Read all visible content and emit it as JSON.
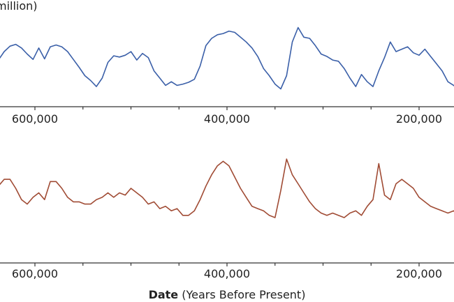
{
  "chart_data": [
    {
      "type": "line",
      "label_fragment": "million)",
      "xlim": [
        650000,
        160000
      ],
      "x_ticks": [
        600000,
        400000,
        200000
      ],
      "x_tick_labels": [
        "600,000",
        "400,000",
        "200,000"
      ],
      "color": "#3a5fa8",
      "series": [
        {
          "x": [
            650000,
            644000,
            638000,
            632000,
            626000,
            620000,
            614000,
            608000,
            602000,
            596000,
            590000,
            584000,
            578000,
            572000,
            566000,
            560000,
            554000,
            548000,
            542000,
            536000,
            530000,
            524000,
            518000,
            512000,
            506000,
            500000,
            494000,
            488000,
            482000,
            476000,
            470000,
            464000,
            458000,
            452000,
            446000,
            440000,
            434000,
            428000,
            422000,
            416000,
            410000,
            404000,
            398000,
            392000,
            386000,
            380000,
            374000,
            368000,
            362000,
            356000,
            350000,
            344000,
            338000,
            332000,
            326000,
            320000,
            314000,
            308000,
            302000,
            296000,
            290000,
            284000,
            278000,
            272000,
            266000,
            260000,
            254000,
            248000,
            242000,
            236000,
            230000,
            224000,
            218000,
            212000,
            206000,
            200000,
            194000,
            188000,
            182000,
            176000,
            170000,
            164000,
            160000
          ],
          "values": [
            190,
            212,
            232,
            246,
            255,
            258,
            252,
            242,
            233,
            252,
            234,
            254,
            257,
            254,
            246,
            233,
            220,
            206,
            198,
            188,
            202,
            228,
            239,
            237,
            240,
            246,
            232,
            243,
            236,
            214,
            202,
            190,
            196,
            190,
            192,
            195,
            200,
            222,
            256,
            268,
            274,
            276,
            280,
            278,
            270,
            262,
            252,
            238,
            218,
            206,
            192,
            184,
            206,
            262,
            286,
            270,
            268,
            256,
            242,
            238,
            232,
            230,
            218,
            202,
            188,
            208,
            196,
            188,
            214,
            236,
            262,
            246,
            250,
            254,
            244,
            240,
            250,
            238,
            226,
            214,
            196,
            190,
            184
          ]
        }
      ]
    },
    {
      "type": "line",
      "label_fragment": ")",
      "xlim": [
        650000,
        160000
      ],
      "x_ticks": [
        600000,
        400000,
        200000
      ],
      "x_tick_labels": [
        "600,000",
        "400,000",
        "200,000"
      ],
      "xlabel_bold": "Date",
      "xlabel_rest": " (Years Before Present)",
      "color": "#a04b34",
      "series": [
        {
          "x": [
            650000,
            644000,
            638000,
            632000,
            626000,
            620000,
            614000,
            608000,
            602000,
            596000,
            590000,
            584000,
            578000,
            572000,
            566000,
            560000,
            554000,
            548000,
            542000,
            536000,
            530000,
            524000,
            518000,
            512000,
            506000,
            500000,
            494000,
            488000,
            482000,
            476000,
            470000,
            464000,
            458000,
            452000,
            446000,
            440000,
            434000,
            428000,
            422000,
            416000,
            410000,
            404000,
            398000,
            392000,
            386000,
            380000,
            374000,
            368000,
            362000,
            356000,
            350000,
            344000,
            338000,
            332000,
            326000,
            320000,
            314000,
            308000,
            302000,
            296000,
            290000,
            284000,
            278000,
            272000,
            266000,
            260000,
            254000,
            248000,
            242000,
            236000,
            230000,
            224000,
            218000,
            212000,
            206000,
            200000,
            194000,
            188000,
            182000,
            176000,
            170000,
            164000,
            160000
          ],
          "values": [
            -7.5,
            -4.5,
            -1.0,
            0.5,
            0.5,
            -1.5,
            -4.0,
            -5.0,
            -3.5,
            -2.5,
            -4.0,
            0.0,
            0.0,
            -1.5,
            -3.5,
            -4.5,
            -4.5,
            -5.0,
            -5.0,
            -4.0,
            -3.5,
            -2.5,
            -3.5,
            -2.5,
            -3.0,
            -1.5,
            -2.5,
            -3.5,
            -5.0,
            -4.5,
            -6.0,
            -5.5,
            -6.5,
            -6.0,
            -7.5,
            -7.5,
            -6.5,
            -4.0,
            -1.0,
            1.5,
            3.5,
            4.5,
            3.5,
            1.0,
            -1.5,
            -3.5,
            -5.5,
            -6.0,
            -6.5,
            -7.5,
            -8.0,
            -2.0,
            5.0,
            1.5,
            -0.5,
            -2.5,
            -4.5,
            -6.0,
            -7.0,
            -7.5,
            -7.0,
            -7.5,
            -8.0,
            -7.0,
            -6.5,
            -7.5,
            -5.5,
            -4.0,
            4.0,
            -3.0,
            -4.0,
            -0.5,
            0.5,
            -0.5,
            -1.5,
            -3.5,
            -4.5,
            -5.5,
            -6.0,
            -6.5,
            -7.0,
            -6.5,
            -7.5
          ]
        }
      ]
    }
  ]
}
